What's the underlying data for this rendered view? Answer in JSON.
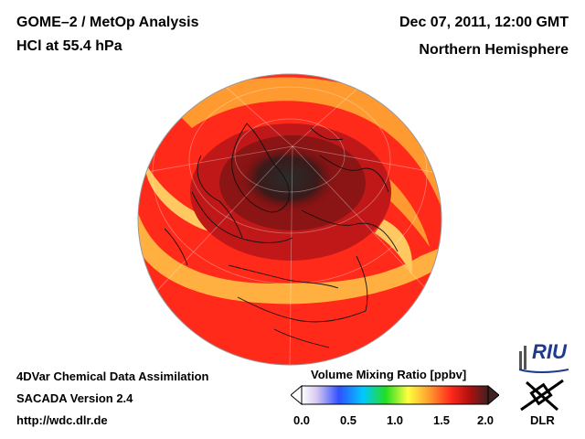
{
  "header": {
    "title_line1": "GOME–2 / MetOp Analysis",
    "title_line2": "HCl at 55.4 hPa",
    "datetime": "Dec 07, 2011, 12:00 GMT",
    "region": "Northern Hemisphere"
  },
  "footer": {
    "line1": "4DVar Chemical Data Assimilation",
    "line2": "SACADA Version 2.4",
    "line3": "http://wdc.dlr.de"
  },
  "colorbar": {
    "title": "Volume Mixing Ratio [ppbv]",
    "ticks": [
      "0.0",
      "0.5",
      "1.0",
      "1.5",
      "2.0"
    ],
    "range": [
      0.0,
      2.0
    ],
    "colors": [
      "#ffffff",
      "#d8c8f0",
      "#3050ff",
      "#00c8ff",
      "#22dd22",
      "#ffff40",
      "#ffa030",
      "#ff2a1a",
      "#b01010",
      "#402020"
    ]
  },
  "map": {
    "projection": "orthographic",
    "center": "North Pole view",
    "field_colors": {
      "low": "#2a2a2a",
      "mid": "#ff2a1a",
      "high": "#ffcc50"
    }
  },
  "logos": {
    "riu": "RIU",
    "dlr": "DLR"
  }
}
